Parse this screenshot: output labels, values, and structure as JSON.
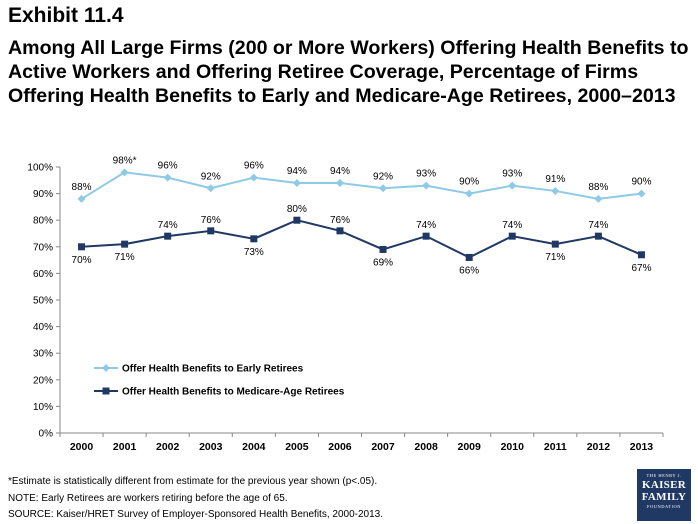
{
  "header": {
    "exhibit": "Exhibit 11.4",
    "title": "Among All Large Firms (200 or More Workers) Offering Health Benefits to Active Workers and Offering Retiree Coverage, Percentage of Firms Offering Health Benefits to Early and Medicare-Age Retirees, 2000–2013"
  },
  "chart_data": {
    "type": "line",
    "x": [
      "2000",
      "2001",
      "2002",
      "2003",
      "2004",
      "2005",
      "2006",
      "2007",
      "2008",
      "2009",
      "2010",
      "2011",
      "2012",
      "2013"
    ],
    "ylim": [
      0,
      100
    ],
    "yticks": [
      "0%",
      "10%",
      "20%",
      "30%",
      "40%",
      "50%",
      "60%",
      "70%",
      "80%",
      "90%",
      "100%"
    ],
    "grid": false,
    "legend_position": "center-left",
    "series": [
      {
        "name": "Offer Health Benefits to Early Retirees",
        "values": [
          88,
          98,
          96,
          92,
          96,
          94,
          94,
          92,
          93,
          90,
          93,
          91,
          88,
          90
        ],
        "labels": [
          "88%",
          "98%*",
          "96%",
          "92%",
          "96%",
          "94%",
          "94%",
          "92%",
          "93%",
          "90%",
          "93%",
          "91%",
          "88%",
          "90%"
        ],
        "color": "#8ecae6",
        "marker": "diamond"
      },
      {
        "name": "Offer Health Benefits to Medicare-Age Retirees",
        "values": [
          70,
          71,
          74,
          76,
          73,
          80,
          76,
          69,
          74,
          66,
          74,
          71,
          74,
          67
        ],
        "labels": [
          "70%",
          "71%",
          "74%",
          "76%",
          "73%",
          "80%",
          "76%",
          "69%",
          "74%",
          "66%",
          "74%",
          "71%",
          "74%",
          "67%"
        ],
        "color": "#1f3864",
        "marker": "square"
      }
    ]
  },
  "footer": {
    "note1": "*Estimate is statistically different from estimate for the previous year shown (p<.05).",
    "note2": "NOTE: Early Retirees are workers retiring before the age of 65.",
    "source": "SOURCE:  Kaiser/HRET Survey of Employer-Sponsored Health Benefits, 2000-2013."
  },
  "logo": {
    "line1": "THE HENRY J.",
    "line2": "KAISER",
    "line3": "FAMILY",
    "line4": "FOUNDATION"
  }
}
